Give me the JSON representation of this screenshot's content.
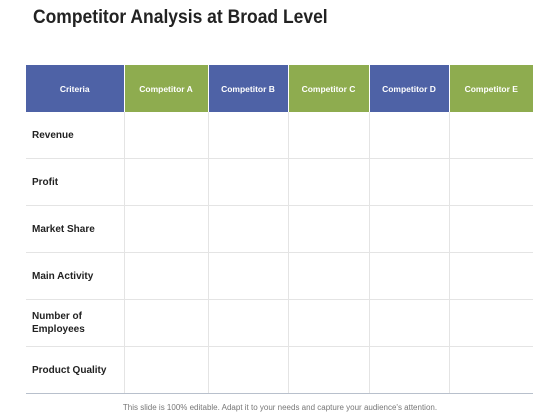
{
  "title": "Competitor Analysis at Broad Level",
  "table": {
    "headers": [
      "Criteria",
      "Competitor A",
      "Competitor B",
      "Competitor C",
      "Competitor D",
      "Competitor E"
    ],
    "header_colors": [
      "#4e62a6",
      "#8eac4f",
      "#4e62a6",
      "#8eac4f",
      "#4e62a6",
      "#8eac4f"
    ],
    "rows": [
      "Revenue",
      "Profit",
      "Market Share",
      "Main Activity",
      "Number of Employees",
      "Product Quality"
    ]
  },
  "footer": "This slide is 100% editable. Adapt it to your needs and capture your audience's attention."
}
